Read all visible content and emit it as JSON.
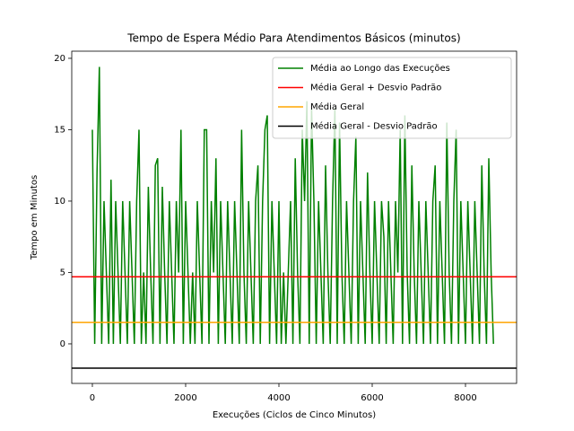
{
  "chart_data": {
    "type": "line",
    "title": "Tempo de Espera Médio Para Atendimentos Básicos (minutos)",
    "x_label": "Execuções (Ciclos de Cinco Minutos)",
    "y_label": "Tempo em Minutos",
    "xlim": [
      -442,
      9096
    ],
    "ylim": [
      -2.77,
      20.5
    ],
    "xticks": [
      0,
      2000,
      4000,
      6000,
      8000
    ],
    "yticks": [
      0,
      5,
      10,
      15,
      20
    ],
    "legend": "upper right",
    "x": [
      0,
      50,
      100,
      150,
      200,
      250,
      300,
      350,
      400,
      450,
      500,
      550,
      600,
      650,
      700,
      750,
      800,
      850,
      900,
      950,
      1000,
      1050,
      1100,
      1150,
      1200,
      1250,
      1300,
      1350,
      1400,
      1450,
      1500,
      1550,
      1600,
      1650,
      1700,
      1750,
      1800,
      1850,
      1900,
      1950,
      2000,
      2050,
      2100,
      2150,
      2200,
      2250,
      2300,
      2350,
      2400,
      2450,
      2500,
      2550,
      2600,
      2650,
      2700,
      2750,
      2800,
      2850,
      2900,
      2950,
      3000,
      3050,
      3100,
      3150,
      3200,
      3250,
      3300,
      3350,
      3400,
      3450,
      3500,
      3550,
      3600,
      3650,
      3700,
      3750,
      3800,
      3850,
      3900,
      3950,
      4000,
      4050,
      4100,
      4150,
      4200,
      4250,
      4300,
      4350,
      4400,
      4450,
      4500,
      4550,
      4600,
      4650,
      4700,
      4750,
      4800,
      4850,
      4900,
      4950,
      5000,
      5050,
      5100,
      5150,
      5200,
      5250,
      5300,
      5350,
      5400,
      5450,
      5500,
      5550,
      5600,
      5650,
      5700,
      5750,
      5800,
      5850,
      5900,
      5950,
      6000,
      6050,
      6100,
      6150,
      6200,
      6250,
      6300,
      6350,
      6400,
      6450,
      6500,
      6550,
      6600,
      6650,
      6700,
      6750,
      6800,
      6850,
      6900,
      6950,
      7000,
      7050,
      7100,
      7150,
      7200,
      7250,
      7300,
      7350,
      7400,
      7450,
      7500,
      7550,
      7600,
      7650,
      7700,
      7750,
      7800,
      7850,
      7900,
      7950,
      8000,
      8050,
      8100,
      8150,
      8200,
      8250,
      8300,
      8350,
      8400,
      8450,
      8500,
      8550,
      8600
    ],
    "series": [
      {
        "name": "Média ao Longo das Execuções",
        "color": "#008000",
        "values": [
          15,
          0,
          12,
          19.4,
          0,
          10,
          5,
          0,
          11.5,
          0,
          10,
          5,
          0,
          10,
          5,
          0,
          10,
          5,
          0,
          10,
          15,
          0,
          5,
          0,
          11,
          5,
          0,
          12.5,
          13,
          0,
          11,
          5,
          0,
          10,
          5,
          0,
          10,
          5,
          15,
          0,
          10,
          5,
          0,
          5,
          0,
          10,
          5,
          0,
          15,
          15,
          0,
          10,
          5,
          13,
          0,
          10,
          5,
          0,
          10,
          5,
          0,
          10,
          5,
          0,
          15,
          5,
          0,
          10,
          5,
          0,
          10,
          12.5,
          0,
          10,
          15,
          16,
          0,
          10,
          5,
          0,
          10,
          0,
          5,
          0,
          5,
          10,
          0,
          13,
          5,
          0,
          15,
          10,
          17,
          0,
          16.5,
          10,
          0,
          10,
          5,
          0,
          12.5,
          5,
          0,
          10,
          16.5,
          0,
          15.5,
          5,
          0,
          10,
          5,
          0,
          10,
          14.5,
          0,
          10,
          5,
          0,
          12,
          5,
          0,
          10,
          5,
          0,
          10,
          7.5,
          0,
          10,
          5,
          0,
          10,
          5,
          15,
          0,
          16,
          5,
          0,
          12.5,
          5,
          0,
          10,
          5,
          0,
          10,
          5,
          0,
          10,
          12.5,
          0,
          10,
          5,
          0,
          15.5,
          5,
          0,
          10,
          15,
          0,
          10,
          5,
          0,
          10,
          5,
          0,
          10,
          5,
          0,
          12.5,
          5,
          0,
          13,
          5,
          0
        ]
      }
    ],
    "reference_lines": [
      {
        "name": "Média Geral + Desvio Padrão",
        "color": "#ff0000",
        "value": 4.7
      },
      {
        "name": "Média Geral",
        "color": "#ffa500",
        "value": 1.5
      },
      {
        "name": "Média Geral - Desvio Padrão",
        "color": "#000000",
        "value": -1.7
      }
    ]
  }
}
